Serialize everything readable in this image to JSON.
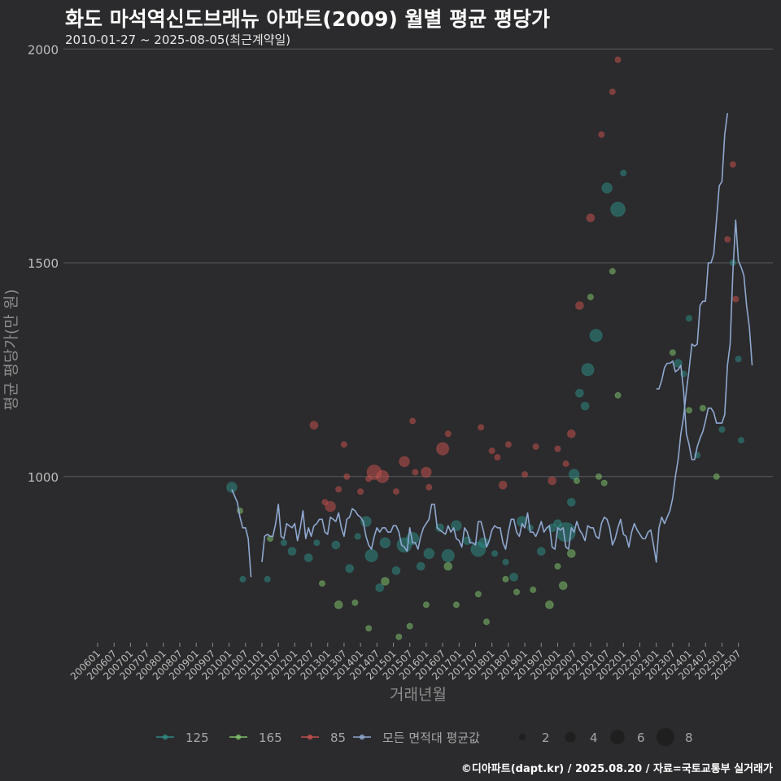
{
  "header": {
    "title": "화도 마석역신도브래뉴 아파트(2009) 월별 평균 평당가",
    "subtitle": "2010-01-27 ~ 2025-08-05(최근계약일)"
  },
  "caption": "©디아파트(dapt.kr) / 2025.08.20 / 자료=국토교통부 실거래가",
  "colors": {
    "background": "#2b2b2d",
    "gridline": "#5a5a5a",
    "series_125": "#2e8b83",
    "series_165": "#7fbf6a",
    "series_85": "#c0504d",
    "series_all": "#8fa8d0"
  },
  "chart_data": {
    "type": "scatter",
    "title": "화도 마석역신도브래뉴 아파트(2009) 월별 평균 평당가",
    "xlabel": "거래년월",
    "ylabel": "평균 평당가(만 원)",
    "xlim": [
      "2006-01",
      "2025-08"
    ],
    "ylim": [
      560,
      2010
    ],
    "y_ticks": [
      1000,
      1500,
      2000
    ],
    "x_tick_labels": [
      "200601",
      "200607",
      "200701",
      "200707",
      "200801",
      "200807",
      "200901",
      "200907",
      "201001",
      "201007",
      "201101",
      "201107",
      "201201",
      "201207",
      "201301",
      "201307",
      "201401",
      "201407",
      "201501",
      "201507",
      "201601",
      "201607",
      "201701",
      "201707",
      "201801",
      "201807",
      "201901",
      "201907",
      "202001",
      "202007",
      "202101",
      "202107",
      "202201",
      "202207",
      "202301",
      "202307",
      "202401",
      "202407",
      "202501",
      "202507"
    ],
    "legend": {
      "items": [
        {
          "label": "125",
          "color": "#2e8b83"
        },
        {
          "label": "165",
          "color": "#7fbf6a"
        },
        {
          "label": "85",
          "color": "#c0504d"
        },
        {
          "label": "모든 면적대 평균값",
          "color": "#8fa8d0"
        }
      ],
      "size_items": [
        {
          "label": "2",
          "size": 2
        },
        {
          "label": "4",
          "size": 4
        },
        {
          "label": "6",
          "size": 6
        },
        {
          "label": "8",
          "size": 8
        }
      ],
      "placement": "bottom"
    },
    "series": [
      {
        "name": "125",
        "color": "#2e8b83",
        "points": [
          {
            "x": "2010-02",
            "y": 975,
            "n": 3
          },
          {
            "x": "2010-06",
            "y": 760,
            "n": 1
          },
          {
            "x": "2011-03",
            "y": 760,
            "n": 1
          },
          {
            "x": "2011-09",
            "y": 845,
            "n": 1
          },
          {
            "x": "2011-12",
            "y": 825,
            "n": 2
          },
          {
            "x": "2012-06",
            "y": 810,
            "n": 2
          },
          {
            "x": "2012-09",
            "y": 845,
            "n": 1
          },
          {
            "x": "2013-04",
            "y": 840,
            "n": 2
          },
          {
            "x": "2013-09",
            "y": 785,
            "n": 2
          },
          {
            "x": "2013-12",
            "y": 860,
            "n": 1
          },
          {
            "x": "2014-03",
            "y": 895,
            "n": 3
          },
          {
            "x": "2014-05",
            "y": 815,
            "n": 4
          },
          {
            "x": "2014-08",
            "y": 740,
            "n": 2
          },
          {
            "x": "2014-10",
            "y": 845,
            "n": 3
          },
          {
            "x": "2015-02",
            "y": 780,
            "n": 2
          },
          {
            "x": "2015-05",
            "y": 840,
            "n": 5
          },
          {
            "x": "2015-08",
            "y": 855,
            "n": 4
          },
          {
            "x": "2015-11",
            "y": 790,
            "n": 2
          },
          {
            "x": "2016-02",
            "y": 820,
            "n": 3
          },
          {
            "x": "2016-06",
            "y": 880,
            "n": 2
          },
          {
            "x": "2016-09",
            "y": 815,
            "n": 4
          },
          {
            "x": "2016-12",
            "y": 885,
            "n": 3
          },
          {
            "x": "2017-04",
            "y": 850,
            "n": 2
          },
          {
            "x": "2017-08",
            "y": 830,
            "n": 5
          },
          {
            "x": "2017-10",
            "y": 845,
            "n": 3
          },
          {
            "x": "2018-02",
            "y": 820,
            "n": 1
          },
          {
            "x": "2018-06",
            "y": 800,
            "n": 1
          },
          {
            "x": "2018-09",
            "y": 765,
            "n": 2
          },
          {
            "x": "2018-12",
            "y": 895,
            "n": 3
          },
          {
            "x": "2019-03",
            "y": 880,
            "n": 1
          },
          {
            "x": "2019-07",
            "y": 825,
            "n": 2
          },
          {
            "x": "2019-11",
            "y": 880,
            "n": 2
          },
          {
            "x": "2020-01",
            "y": 890,
            "n": 2
          },
          {
            "x": "2020-04",
            "y": 870,
            "n": 7
          },
          {
            "x": "2020-06",
            "y": 940,
            "n": 2
          },
          {
            "x": "2020-07",
            "y": 1005,
            "n": 3
          },
          {
            "x": "2020-09",
            "y": 1195,
            "n": 2
          },
          {
            "x": "2020-11",
            "y": 1165,
            "n": 2
          },
          {
            "x": "2020-12",
            "y": 1250,
            "n": 4
          },
          {
            "x": "2021-03",
            "y": 1330,
            "n": 4
          },
          {
            "x": "2021-07",
            "y": 1675,
            "n": 3
          },
          {
            "x": "2021-11",
            "y": 1625,
            "n": 5
          },
          {
            "x": "2022-01",
            "y": 1710,
            "n": 1
          },
          {
            "x": "2023-09",
            "y": 1265,
            "n": 2
          },
          {
            "x": "2023-11",
            "y": 1240,
            "n": 1
          },
          {
            "x": "2024-01",
            "y": 1370,
            "n": 1
          },
          {
            "x": "2024-04",
            "y": 1050,
            "n": 1
          },
          {
            "x": "2025-01",
            "y": 1110,
            "n": 1
          },
          {
            "x": "2025-05",
            "y": 1500,
            "n": 1
          },
          {
            "x": "2025-07",
            "y": 1275,
            "n": 1
          },
          {
            "x": "2025-08",
            "y": 1085,
            "n": 1
          }
        ]
      },
      {
        "name": "165",
        "color": "#7fbf6a",
        "points": [
          {
            "x": "2010-05",
            "y": 920,
            "n": 1
          },
          {
            "x": "2011-04",
            "y": 855,
            "n": 1
          },
          {
            "x": "2012-11",
            "y": 750,
            "n": 1
          },
          {
            "x": "2013-05",
            "y": 700,
            "n": 2
          },
          {
            "x": "2013-11",
            "y": 705,
            "n": 1
          },
          {
            "x": "2014-04",
            "y": 645,
            "n": 1
          },
          {
            "x": "2014-10",
            "y": 755,
            "n": 2
          },
          {
            "x": "2015-03",
            "y": 625,
            "n": 1
          },
          {
            "x": "2015-07",
            "y": 650,
            "n": 1
          },
          {
            "x": "2016-01",
            "y": 700,
            "n": 1
          },
          {
            "x": "2016-09",
            "y": 790,
            "n": 2
          },
          {
            "x": "2016-12",
            "y": 700,
            "n": 1
          },
          {
            "x": "2017-08",
            "y": 725,
            "n": 1
          },
          {
            "x": "2017-11",
            "y": 660,
            "n": 1
          },
          {
            "x": "2018-06",
            "y": 760,
            "n": 1
          },
          {
            "x": "2018-10",
            "y": 730,
            "n": 1
          },
          {
            "x": "2019-04",
            "y": 735,
            "n": 1
          },
          {
            "x": "2019-10",
            "y": 700,
            "n": 2
          },
          {
            "x": "2020-01",
            "y": 790,
            "n": 1
          },
          {
            "x": "2020-03",
            "y": 745,
            "n": 2
          },
          {
            "x": "2020-06",
            "y": 820,
            "n": 2
          },
          {
            "x": "2020-08",
            "y": 990,
            "n": 1
          },
          {
            "x": "2021-01",
            "y": 1420,
            "n": 1
          },
          {
            "x": "2021-04",
            "y": 1000,
            "n": 1
          },
          {
            "x": "2021-06",
            "y": 985,
            "n": 1
          },
          {
            "x": "2021-09",
            "y": 1480,
            "n": 1
          },
          {
            "x": "2021-11",
            "y": 1190,
            "n": 1
          },
          {
            "x": "2023-07",
            "y": 1290,
            "n": 1
          },
          {
            "x": "2024-01",
            "y": 1155,
            "n": 1
          },
          {
            "x": "2024-06",
            "y": 1160,
            "n": 1
          },
          {
            "x": "2024-11",
            "y": 1000,
            "n": 1
          }
        ]
      },
      {
        "name": "85",
        "color": "#c0504d",
        "points": [
          {
            "x": "2012-08",
            "y": 1120,
            "n": 2
          },
          {
            "x": "2012-12",
            "y": 940,
            "n": 1
          },
          {
            "x": "2013-02",
            "y": 930,
            "n": 3
          },
          {
            "x": "2013-05",
            "y": 970,
            "n": 1
          },
          {
            "x": "2013-07",
            "y": 1075,
            "n": 1
          },
          {
            "x": "2013-08",
            "y": 1000,
            "n": 1
          },
          {
            "x": "2014-01",
            "y": 965,
            "n": 1
          },
          {
            "x": "2014-04",
            "y": 995,
            "n": 1
          },
          {
            "x": "2014-06",
            "y": 1010,
            "n": 5
          },
          {
            "x": "2014-09",
            "y": 1000,
            "n": 4
          },
          {
            "x": "2015-02",
            "y": 965,
            "n": 1
          },
          {
            "x": "2015-05",
            "y": 1035,
            "n": 3
          },
          {
            "x": "2015-08",
            "y": 1130,
            "n": 1
          },
          {
            "x": "2015-09",
            "y": 1010,
            "n": 1
          },
          {
            "x": "2016-01",
            "y": 1010,
            "n": 3
          },
          {
            "x": "2016-02",
            "y": 975,
            "n": 1
          },
          {
            "x": "2016-07",
            "y": 1065,
            "n": 4
          },
          {
            "x": "2016-09",
            "y": 1100,
            "n": 1
          },
          {
            "x": "2017-09",
            "y": 1115,
            "n": 1
          },
          {
            "x": "2018-01",
            "y": 1060,
            "n": 1
          },
          {
            "x": "2018-03",
            "y": 1045,
            "n": 1
          },
          {
            "x": "2018-05",
            "y": 980,
            "n": 2
          },
          {
            "x": "2018-07",
            "y": 1075,
            "n": 1
          },
          {
            "x": "2019-01",
            "y": 1005,
            "n": 1
          },
          {
            "x": "2019-05",
            "y": 1070,
            "n": 1
          },
          {
            "x": "2019-11",
            "y": 990,
            "n": 2
          },
          {
            "x": "2020-01",
            "y": 1065,
            "n": 1
          },
          {
            "x": "2020-04",
            "y": 1030,
            "n": 1
          },
          {
            "x": "2020-06",
            "y": 1100,
            "n": 2
          },
          {
            "x": "2020-09",
            "y": 1400,
            "n": 2
          },
          {
            "x": "2021-01",
            "y": 1605,
            "n": 2
          },
          {
            "x": "2021-05",
            "y": 1800,
            "n": 1
          },
          {
            "x": "2021-09",
            "y": 1900,
            "n": 1
          },
          {
            "x": "2021-11",
            "y": 1975,
            "n": 1
          },
          {
            "x": "2025-03",
            "y": 1555,
            "n": 1
          },
          {
            "x": "2025-05",
            "y": 1730,
            "n": 1
          },
          {
            "x": "2025-06",
            "y": 1415,
            "n": 1
          }
        ]
      }
    ],
    "avg_line": {
      "name": "모든 면적대 평균값",
      "color": "#8fa8d0",
      "segments": [
        {
          "start": "2010-02",
          "values": [
            970,
            955,
            940,
            905,
            880,
            880,
            855,
            765
          ]
        },
        {
          "start": "2011-01",
          "values": [
            800,
            860,
            865,
            860,
            860,
            890,
            935,
            860,
            855,
            890,
            885,
            880,
            890,
            850,
            880,
            920,
            855,
            880,
            860,
            885,
            890,
            900,
            900,
            870,
            865,
            905,
            900,
            895,
            915,
            880,
            860,
            900,
            905,
            925,
            920,
            910,
            905,
            895,
            860,
            840,
            830,
            860,
            880,
            870,
            880,
            880,
            870,
            870,
            885,
            885,
            870,
            840,
            835,
            825,
            880,
            845,
            845,
            830,
            860,
            880,
            890,
            900,
            935,
            935,
            880,
            875,
            870,
            865,
            885,
            870,
            880,
            855,
            850,
            835,
            880,
            870,
            845,
            845,
            840,
            895,
            895,
            870,
            835,
            850,
            875,
            885,
            880,
            880,
            845,
            830,
            870,
            900,
            900,
            870,
            860,
            890,
            880,
            915,
            870,
            870,
            860,
            875,
            895,
            870,
            880,
            885,
            835,
            830,
            880,
            875,
            880,
            835,
            830,
            880,
            870,
            895,
            875,
            865,
            850,
            885,
            880,
            880,
            860,
            855,
            890,
            905,
            900,
            880,
            840,
            855,
            880,
            900,
            865,
            860,
            835,
            870,
            890,
            875,
            865,
            855,
            855,
            870,
            875,
            840,
            800,
            880,
            905,
            890,
            905,
            920,
            950,
            1000,
            1040,
            1100,
            1140,
            1200,
            1250,
            1310,
            1305,
            1310,
            1400,
            1410,
            1410,
            1500,
            1500,
            1520,
            1600,
            1680,
            1690,
            1800,
            1850
          ]
        }
      ],
      "segments_late": [
        {
          "start": "2023-01",
          "values": [
            1205,
            1205,
            1225,
            1255,
            1265,
            1265,
            1270,
            1245,
            1250,
            1260,
            1200,
            1100,
            1075,
            1040,
            1040,
            1070,
            1090,
            1105,
            1130,
            1160,
            1160,
            1150,
            1125,
            1125,
            1125,
            1145,
            1260,
            1310,
            1480,
            1600,
            1505,
            1490,
            1470,
            1400,
            1350,
            1260
          ]
        }
      ]
    }
  }
}
